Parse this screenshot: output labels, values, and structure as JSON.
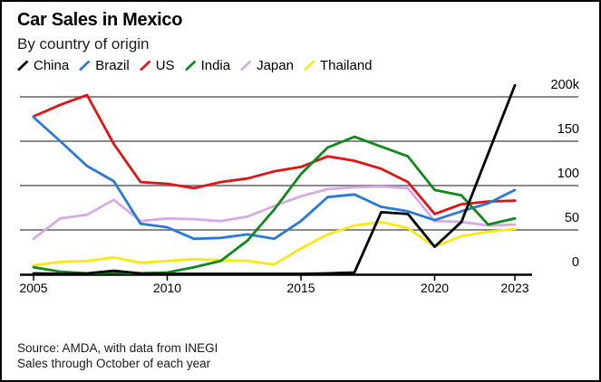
{
  "title": "Car Sales in Mexico",
  "subtitle": "By country of origin",
  "footer": {
    "source_line_1": "Source: AMDA, with data from INEGI",
    "source_line_2": "Sales through October of each year"
  },
  "colors": {
    "gridline": "#787878",
    "axis": "#000000",
    "text": "#000000"
  },
  "chart_data": {
    "type": "line",
    "title": "Car Sales in Mexico",
    "subtitle": "By country of origin",
    "xlabel": "",
    "ylabel": "",
    "y_unit": "thousands of vehicles",
    "ylim": [
      0,
      220
    ],
    "grid": true,
    "legend_position": "top",
    "x": [
      2005,
      2006,
      2007,
      2008,
      2009,
      2010,
      2011,
      2012,
      2013,
      2014,
      2015,
      2016,
      2017,
      2018,
      2019,
      2020,
      2021,
      2022,
      2023
    ],
    "x_ticks": [
      2005,
      2010,
      2015,
      2020,
      2023
    ],
    "x_tick_labels": [
      "2005",
      "2010",
      "2015",
      "2020",
      "2023"
    ],
    "y_ticks": [
      0,
      50,
      100,
      150,
      200
    ],
    "y_tick_labels": [
      "0",
      "50",
      "100",
      "150",
      "200k"
    ],
    "series": [
      {
        "name": "China",
        "color": "#000000",
        "values": [
          1,
          0.5,
          1,
          4,
          1,
          0.5,
          0.5,
          0.5,
          0.5,
          0.5,
          0.5,
          1,
          2,
          70,
          68,
          31,
          59,
          136,
          213
        ]
      },
      {
        "name": "Brazil",
        "color": "#287ad7",
        "values": [
          177,
          150,
          122,
          105,
          57,
          53,
          40,
          41,
          45,
          40,
          60,
          87,
          90,
          76,
          71,
          61,
          71,
          80,
          95
        ]
      },
      {
        "name": "US",
        "color": "#e11414",
        "values": [
          178,
          191,
          202,
          147,
          104,
          102,
          97,
          104,
          108,
          116,
          121,
          133,
          128,
          119,
          104,
          68,
          79,
          82,
          83
        ]
      },
      {
        "name": "India",
        "color": "#0e8a1b",
        "values": [
          8,
          3,
          1,
          2,
          1,
          2,
          8,
          15,
          38,
          73,
          113,
          143,
          155,
          144,
          133,
          95,
          89,
          56,
          63
        ]
      },
      {
        "name": "Japan",
        "color": "#d6aae6",
        "values": [
          40,
          63,
          67,
          84,
          60,
          63,
          62,
          60,
          65,
          77,
          88,
          96,
          98,
          99,
          97,
          60,
          59,
          55,
          56
        ]
      },
      {
        "name": "Thailand",
        "color": "#fae814",
        "values": [
          10,
          14,
          15,
          19,
          13,
          15,
          17,
          16,
          15,
          11,
          29,
          45,
          55,
          59,
          52,
          31,
          43,
          48,
          51
        ]
      }
    ]
  }
}
